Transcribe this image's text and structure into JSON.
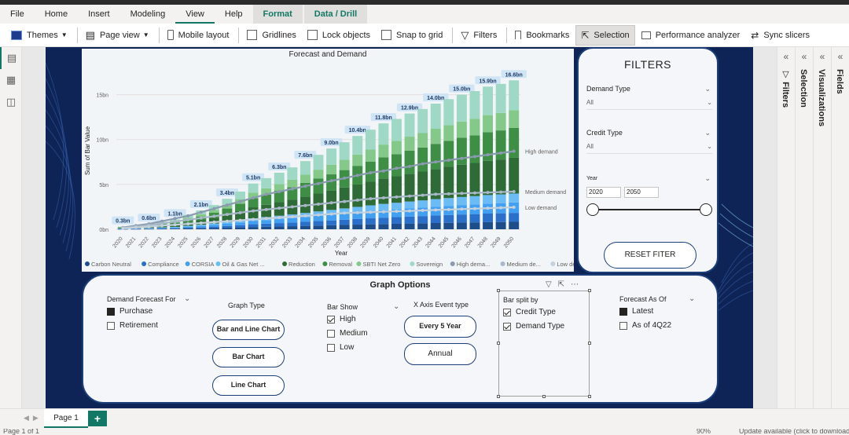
{
  "ribbon": {
    "tabs": [
      "File",
      "Home",
      "Insert",
      "Modeling",
      "View",
      "Help"
    ],
    "active_tab": "View",
    "context_tabs": [
      "Format",
      "Data / Drill"
    ]
  },
  "toolbar": {
    "themes": "Themes",
    "page_view": "Page view",
    "mobile_layout": "Mobile layout",
    "gridlines": "Gridlines",
    "lock_objects": "Lock objects",
    "snap_to_grid": "Snap to grid",
    "filters": "Filters",
    "bookmarks": "Bookmarks",
    "selection": "Selection",
    "performance_analyzer": "Performance analyzer",
    "sync_slicers": "Sync slicers"
  },
  "right_panes": [
    "Filters",
    "Selection",
    "Visualizations",
    "Fields"
  ],
  "chart_data": {
    "type": "bar",
    "title": "Forecast and Demand",
    "xlabel": "Year",
    "ylabel": "Sum of Bar Value",
    "ylim": [
      0,
      17.5
    ],
    "y_ticks": [
      "0bn",
      "5bn",
      "10bn",
      "15bn"
    ],
    "y_tick_values": [
      0,
      5,
      10,
      15
    ],
    "categories": [
      "2020",
      "2021",
      "2022",
      "2023",
      "2024",
      "2025",
      "2026",
      "2027",
      "2028",
      "2029",
      "2030",
      "2031",
      "2032",
      "2033",
      "2034",
      "2035",
      "2036",
      "2037",
      "2038",
      "2039",
      "2040",
      "2041",
      "2042",
      "2043",
      "2044",
      "2045",
      "2046",
      "2047",
      "2048",
      "2049",
      "2050"
    ],
    "totals": [
      0.3,
      0.45,
      0.6,
      0.85,
      1.1,
      1.6,
      2.1,
      2.7,
      3.4,
      4.2,
      5.1,
      5.7,
      6.3,
      6.9,
      7.6,
      8.3,
      9.0,
      9.7,
      10.4,
      11.1,
      11.8,
      12.3,
      12.9,
      13.4,
      14.0,
      14.5,
      15.0,
      15.4,
      15.9,
      16.2,
      16.6
    ],
    "data_labels": {
      "2020": "0.3bn",
      "2022": "0.6bn",
      "2024": "1.1bn",
      "2026": "2.1bn",
      "2028": "3.4bn",
      "2030": "5.1bn",
      "2032": "6.3bn",
      "2034": "7.6bn",
      "2036": "9.0bn",
      "2038": "10.4bn",
      "2040": "11.8bn",
      "2042": "12.9bn",
      "2044": "14.0bn",
      "2046": "15.0bn",
      "2048": "15.9bn",
      "2050": "16.6bn"
    },
    "stack_shares": [
      {
        "name": "Carbon Neutral",
        "color": "#1d4e89",
        "share": 0.05
      },
      {
        "name": "Compliance",
        "color": "#2a6fc9",
        "share": 0.06
      },
      {
        "name": "CORSIA",
        "color": "#41a0f2",
        "share": 0.07
      },
      {
        "name": "Oil & Gas Net ...",
        "color": "#6bbcf5",
        "share": 0.06
      },
      {
        "name": "Reduction",
        "color": "#2f6b37",
        "share": 0.24
      },
      {
        "name": "Removal",
        "color": "#3e8e46",
        "share": 0.2
      },
      {
        "name": "SBTI Net Zero",
        "color": "#84c98a",
        "share": 0.12
      },
      {
        "name": "Sovereign",
        "color": "#9fd9c6",
        "share": 0.2
      }
    ],
    "lines": [
      {
        "name": "High demand",
        "label": "High demand",
        "color": "#8a9bb0",
        "values": [
          0.2,
          0.4,
          0.6,
          0.9,
          1.2,
          1.5,
          1.9,
          2.3,
          2.7,
          3.1,
          3.5,
          3.9,
          4.2,
          4.5,
          4.8,
          5.1,
          5.4,
          5.7,
          6.0,
          6.3,
          6.5,
          6.8,
          7.0,
          7.3,
          7.5,
          7.7,
          7.9,
          8.1,
          8.3,
          8.5,
          8.7
        ]
      },
      {
        "name": "Medium demand",
        "label": "Medium demand",
        "color": "#a8b8c8",
        "values": [
          0.15,
          0.3,
          0.45,
          0.65,
          0.85,
          1.05,
          1.25,
          1.45,
          1.65,
          1.85,
          2.05,
          2.2,
          2.35,
          2.5,
          2.65,
          2.8,
          2.95,
          3.1,
          3.25,
          3.4,
          3.5,
          3.6,
          3.7,
          3.8,
          3.9,
          3.95,
          4.0,
          4.05,
          4.1,
          4.15,
          4.2
        ]
      },
      {
        "name": "Low demand",
        "label": "Low demand",
        "color": "#c4d0dc",
        "values": [
          0.1,
          0.2,
          0.3,
          0.4,
          0.5,
          0.6,
          0.7,
          0.8,
          0.9,
          1.0,
          1.1,
          1.2,
          1.3,
          1.4,
          1.5,
          1.6,
          1.7,
          1.8,
          1.85,
          1.9,
          1.95,
          2.0,
          2.05,
          2.1,
          2.15,
          2.2,
          2.25,
          2.3,
          2.35,
          2.4,
          2.45
        ]
      }
    ],
    "legend": [
      "Carbon Neutral",
      "Compliance",
      "CORSIA",
      "Oil & Gas Net ...",
      "Reduction",
      "Removal",
      "SBTI Net Zero",
      "Sovereign",
      "High dema...",
      "Medium de...",
      "Low dema..."
    ],
    "legend_colors": [
      "#1d4e89",
      "#2a6fc9",
      "#41a0f2",
      "#6bbcf5",
      "#2f6b37",
      "#3e8e46",
      "#84c98a",
      "#9fd9c6",
      "#8a9bb0",
      "#a8b8c8",
      "#c4d0dc"
    ]
  },
  "filters": {
    "title": "FILTERS",
    "demand_type_label": "Demand Type",
    "demand_type_value": "All",
    "credit_type_label": "Credit Type",
    "credit_type_value": "All",
    "year_label": "Year",
    "year_from": "2020",
    "year_to": "2050",
    "reset_label": "RESET FITER"
  },
  "options": {
    "title": "Graph Options",
    "demand_forecast_for": {
      "label": "Demand Forecast For",
      "items": [
        "Purchase",
        "Retirement"
      ],
      "selected": "Purchase"
    },
    "graph_type": {
      "label": "Graph Type",
      "buttons": [
        "Bar and Line Chart",
        "Bar Chart",
        "Line Chart"
      ]
    },
    "bar_show": {
      "label": "Bar Show",
      "items": [
        "High",
        "Medium",
        "Low"
      ],
      "checked": [
        "High"
      ]
    },
    "x_axis_event_type": {
      "label": "X Axis Event type",
      "buttons": [
        "Every 5 Year",
        "Annual"
      ]
    },
    "bar_split_by": {
      "label": "Bar split by",
      "items": [
        "Credit Type",
        "Demand Type"
      ],
      "checked": [
        "Credit Type",
        "Demand Type"
      ]
    },
    "forecast_as_of": {
      "label": "Forecast As Of",
      "items": [
        "Latest",
        "As of 4Q22"
      ],
      "selected": "Latest"
    }
  },
  "pages": {
    "tab": "Page 1",
    "add": "+"
  },
  "status": {
    "page_info": "Page 1 of 1",
    "zoom": "90%",
    "update": "Update available (click to download)"
  }
}
